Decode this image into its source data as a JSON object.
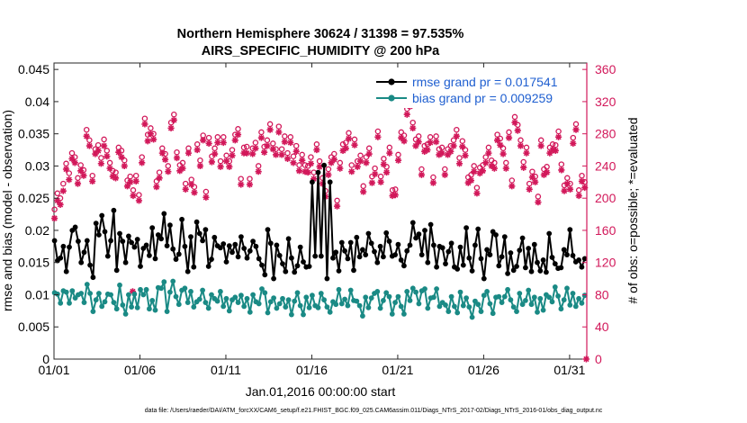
{
  "chart_data": {
    "type": "line",
    "title": "Northern Hemisphere 30624 / 31398 = 97.535%",
    "subtitle": "AIRS_SPECIFIC_HUMIDITY @ 200 hPa",
    "xlabel": "Jan.01,2016 00:00:00 start",
    "ylabel": "rmse and bias (model - observation)",
    "y2label": "# of obs: o=possible; *=evaluated",
    "footer": "data file: /Users/raeder/DAI/ATM_forcXX/CAM6_setup/f.e21.FHIST_BGC.f09_025.CAM6assim.011/Diags_NTrS_2017-02/Diags_NTrS_2016-01/obs_diag_output.nc",
    "x_ticks": [
      1,
      6,
      11,
      16,
      21,
      26,
      31
    ],
    "x_tick_labels": [
      "01/01",
      "01/06",
      "01/11",
      "01/16",
      "01/21",
      "01/26",
      "01/31"
    ],
    "xlim": [
      1,
      32
    ],
    "ylim": [
      0,
      0.046
    ],
    "y_ticks": [
      0,
      0.005,
      0.01,
      0.015,
      0.02,
      0.025,
      0.03,
      0.035,
      0.04,
      0.045
    ],
    "y_tick_labels": [
      "0",
      "0.005",
      "0.01",
      "0.015",
      "0.02",
      "0.025",
      "0.03",
      "0.035",
      "0.04",
      "0.045"
    ],
    "y2lim": [
      0,
      368
    ],
    "y2_ticks": [
      0,
      40,
      80,
      120,
      160,
      200,
      240,
      280,
      320,
      360
    ],
    "y2_tick_labels": [
      "0",
      "40",
      "80",
      "120",
      "160",
      "200",
      "240",
      "280",
      "320",
      "360"
    ],
    "colors": {
      "rmse": "#000000",
      "bias": "#1a8a85",
      "obs": "#d2185a"
    },
    "series": [
      {
        "name": "rmse grand pr = 0.017541",
        "axis": "left",
        "values": [
          0.0184,
          0.0153,
          0.0157,
          0.0175,
          0.0136,
          0.0174,
          0.02,
          0.0205,
          0.0183,
          0.015,
          0.0166,
          0.0184,
          0.0146,
          0.0127,
          0.0211,
          0.0193,
          0.0223,
          0.0198,
          0.016,
          0.0184,
          0.0231,
          0.0138,
          0.0195,
          0.0183,
          0.015,
          0.0191,
          0.0181,
          0.0174,
          0.0186,
          0.0144,
          0.0172,
          0.0177,
          0.0161,
          0.0204,
          0.0156,
          0.0193,
          0.0187,
          0.0226,
          0.0176,
          0.0208,
          0.0171,
          0.0155,
          0.0163,
          0.0217,
          0.0175,
          0.0136,
          0.019,
          0.0143,
          0.0213,
          0.0195,
          0.0184,
          0.0201,
          0.0144,
          0.0155,
          0.0189,
          0.0176,
          0.0173,
          0.0179,
          0.0151,
          0.0176,
          0.0166,
          0.0178,
          0.0159,
          0.019,
          0.0172,
          0.0157,
          0.0168,
          0.0183,
          0.0175,
          0.0156,
          0.0146,
          0.0131,
          0.0201,
          0.018,
          0.0125,
          0.0177,
          0.0161,
          0.0148,
          0.0136,
          0.0187,
          0.0157,
          0.0135,
          0.0145,
          0.0174,
          0.0151,
          0.0143,
          0.0144,
          0.0275,
          0.016,
          0.029,
          0.016,
          0.0301,
          0.0125,
          0.0275,
          0.0157,
          0.0166,
          0.0137,
          0.0181,
          0.0168,
          0.0156,
          0.0181,
          0.0138,
          0.0189,
          0.0159,
          0.017,
          0.0162,
          0.0195,
          0.018,
          0.0167,
          0.015,
          0.0175,
          0.0159,
          0.0196,
          0.0183,
          0.016,
          0.0162,
          0.0178,
          0.0154,
          0.0145,
          0.0168,
          0.0177,
          0.0212,
          0.0188,
          0.0194,
          0.0162,
          0.02,
          0.015,
          0.0209,
          0.0177,
          0.0143,
          0.0175,
          0.0173,
          0.0148,
          0.0167,
          0.018,
          0.0143,
          0.014,
          0.0174,
          0.0146,
          0.0204,
          0.0157,
          0.0137,
          0.0177,
          0.0202,
          0.0156,
          0.0125,
          0.017,
          0.0162,
          0.0198,
          0.0193,
          0.0145,
          0.0159,
          0.019,
          0.0133,
          0.0165,
          0.0138,
          0.0144,
          0.0169,
          0.0188,
          0.0142,
          0.0172,
          0.0136,
          0.0178,
          0.015,
          0.0137,
          0.0154,
          0.0135,
          0.0195,
          0.0158,
          0.0148,
          0.0141,
          0.0142,
          0.017,
          0.0162,
          0.0201,
          0.0161,
          0.0151,
          0.0154,
          0.0143,
          0.0156
        ]
      },
      {
        "name": "bias grand pr = 0.009259",
        "axis": "left",
        "values": [
          0.0103,
          0.0101,
          0.0087,
          0.0106,
          0.0104,
          0.0087,
          0.0106,
          0.0095,
          0.01,
          0.0102,
          0.0088,
          0.0116,
          0.0102,
          0.0074,
          0.0092,
          0.0102,
          0.0082,
          0.0089,
          0.0101,
          0.01,
          0.0088,
          0.0078,
          0.0115,
          0.0084,
          0.007,
          0.01,
          0.0081,
          0.0101,
          0.008,
          0.0108,
          0.01,
          0.0108,
          0.0078,
          0.0091,
          0.0076,
          0.0111,
          0.011,
          0.012,
          0.0074,
          0.0104,
          0.0121,
          0.0097,
          0.0085,
          0.0107,
          0.011,
          0.0088,
          0.0105,
          0.0081,
          0.0089,
          0.0093,
          0.0107,
          0.0088,
          0.0079,
          0.01,
          0.0094,
          0.009,
          0.0105,
          0.0082,
          0.0094,
          0.0075,
          0.0092,
          0.0096,
          0.0088,
          0.0099,
          0.0082,
          0.0094,
          0.0073,
          0.01,
          0.0089,
          0.0086,
          0.0109,
          0.0103,
          0.0072,
          0.0089,
          0.0095,
          0.0079,
          0.0086,
          0.0094,
          0.0081,
          0.0092,
          0.0069,
          0.009,
          0.0103,
          0.0083,
          0.0069,
          0.0096,
          0.008,
          0.0099,
          0.0083,
          0.008,
          0.0102,
          0.0092,
          0.0081,
          0.0073,
          0.0089,
          0.0085,
          0.0108,
          0.0086,
          0.0093,
          0.0083,
          0.0107,
          0.0091,
          0.009,
          0.0083,
          0.0067,
          0.0096,
          0.008,
          0.0095,
          0.0102,
          0.0105,
          0.0079,
          0.0091,
          0.0103,
          0.0097,
          0.007,
          0.0088,
          0.0097,
          0.0082,
          0.007,
          0.0105,
          0.0091,
          0.011,
          0.0104,
          0.0086,
          0.0106,
          0.0109,
          0.0079,
          0.0095,
          0.0096,
          0.0109,
          0.0082,
          0.0088,
          0.0084,
          0.0074,
          0.0097,
          0.0082,
          0.0072,
          0.0104,
          0.0083,
          0.0095,
          0.0081,
          0.0065,
          0.009,
          0.0085,
          0.0074,
          0.0099,
          0.0105,
          0.0086,
          0.0071,
          0.0096,
          0.0097,
          0.0088,
          0.0097,
          0.0108,
          0.0092,
          0.0081,
          0.0074,
          0.0102,
          0.0085,
          0.0091,
          0.0107,
          0.0085,
          0.0096,
          0.0073,
          0.0094,
          0.0076,
          0.01,
          0.0096,
          0.0089,
          0.0112,
          0.0098,
          0.0078,
          0.0092,
          0.011,
          0.0084,
          0.0102,
          0.0082,
          0.0094,
          0.0087,
          0.0099
        ]
      },
      {
        "name": "# of obs possible",
        "axis": "right",
        "marker": "o",
        "values": [
          186,
          206,
          200,
          218,
          243,
          231,
          256,
          251,
          225,
          241,
          235,
          285,
          272,
          228,
          261,
          266,
          250,
          273,
          259,
          244,
          234,
          232,
          263,
          259,
          247,
          222,
          227,
          210,
          228,
          204,
          251,
          299,
          279,
          287,
          280,
          221,
          232,
          262,
          255,
          240,
          294,
          304,
          257,
          241,
          244,
          218,
          262,
          223,
          214,
          267,
          247,
          278,
          208,
          275,
          252,
          262,
          276,
          246,
          276,
          253,
          246,
          260,
          279,
          286,
          224,
          263,
          264,
          224,
          262,
          269,
          240,
          282,
          264,
          272,
          292,
          268,
          261,
          289,
          261,
          277,
          256,
          276,
          252,
          265,
          241,
          254,
          241,
          240,
          251,
          232,
          267,
          246,
          225,
          209,
          236,
          251,
          255,
          197,
          244,
          267,
          269,
          281,
          241,
          273,
          246,
          253,
          215,
          251,
          262,
          227,
          237,
          283,
          227,
          249,
          239,
          263,
          210,
          211,
          254,
          282,
          278,
          311,
          322,
          294,
          273,
          277,
          236,
          265,
          267,
          276,
          226,
          277,
          261,
          263,
          236,
          261,
          265,
          272,
          285,
          250,
          271,
          260,
          226,
          229,
          240,
          213,
          238,
          241,
          251,
          263,
          247,
          244,
          279,
          274,
          262,
          244,
          282,
          222,
          301,
          291,
          272,
          245,
          263,
          218,
          233,
          227,
          202,
          272,
          236,
          239,
          263,
          267,
          266,
          283,
          242,
          216,
          225,
          218,
          275,
          292,
          210,
          228,
          220
        ]
      },
      {
        "name": "# of obs evaluated",
        "axis": "right",
        "marker": "*",
        "values": [
          175,
          197,
          192,
          209,
          236,
          223,
          249,
          244,
          218,
          234,
          228,
          277,
          265,
          221,
          255,
          259,
          243,
          265,
          252,
          237,
          227,
          225,
          257,
          251,
          240,
          215,
          220,
          203,
          221,
          197,
          244,
          292,
          271,
          280,
          273,
          214,
          225,
          256,
          248,
          233,
          287,
          297,
          250,
          234,
          237,
          211,
          256,
          217,
          207,
          260,
          240,
          272,
          201,
          268,
          245,
          255,
          269,
          239,
          269,
          246,
          239,
          253,
          272,
          279,
          217,
          256,
          256,
          217,
          255,
          262,
          233,
          275,
          257,
          265,
          285,
          261,
          254,
          282,
          254,
          270,
          249,
          269,
          244,
          258,
          234,
          247,
          233,
          232,
          243,
          224,
          260,
          239,
          218,
          202,
          229,
          244,
          248,
          190,
          237,
          259,
          262,
          274,
          233,
          266,
          239,
          246,
          208,
          244,
          255,
          219,
          230,
          276,
          220,
          242,
          232,
          256,
          203,
          204,
          247,
          275,
          271,
          304,
          314,
          287,
          265,
          270,
          229,
          258,
          260,
          269,
          219,
          270,
          254,
          256,
          229,
          254,
          258,
          265,
          277,
          243,
          264,
          253,
          219,
          222,
          233,
          206,
          231,
          234,
          244,
          256,
          240,
          237,
          272,
          266,
          255,
          237,
          275,
          215,
          294,
          284,
          265,
          238,
          256,
          211,
          226,
          220,
          195,
          265,
          229,
          232,
          256,
          260,
          259,
          276,
          235,
          209,
          218,
          211,
          268,
          285,
          203,
          221,
          213
        ]
      }
    ],
    "extra_markers": [
      {
        "series": "# of obs evaluated",
        "x": 5.58,
        "y": 84
      },
      {
        "series": "# of obs evaluated",
        "x": 31.97,
        "y": 0
      }
    ],
    "x_start": 1.03,
    "x_end": 31.88,
    "legend": "top-right",
    "grid": false
  }
}
